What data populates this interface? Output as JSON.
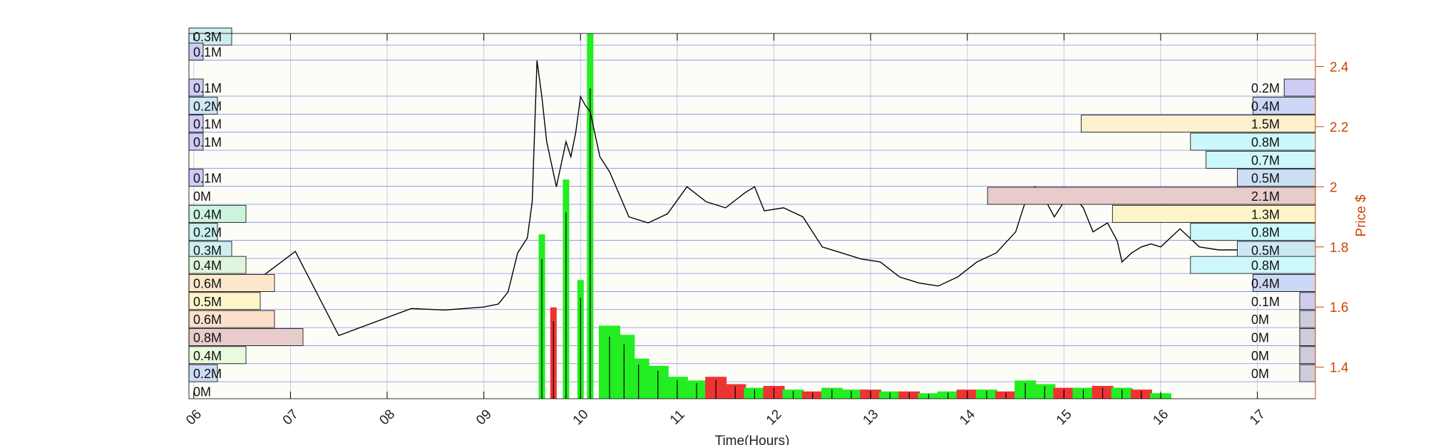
{
  "chart_data": {
    "type": "line",
    "title": "",
    "xlabel": "Time(Hours)",
    "ylabel": "Price $",
    "xlim": [
      5.95,
      17.6
    ],
    "ylim": [
      1.295,
      2.51
    ],
    "x_ticks": [
      "06",
      "07",
      "08",
      "09",
      "10",
      "11",
      "12",
      "13",
      "14",
      "15",
      "16",
      "17"
    ],
    "y_ticks": [
      1.4,
      1.6,
      1.8,
      2.0,
      2.2,
      2.4
    ],
    "y_tick_labels": [
      "1.4",
      "1.6",
      "1.8",
      "2",
      "2.2",
      "2.4"
    ],
    "grid": true,
    "price_series": {
      "name": "Price",
      "x": [
        6.7,
        7.05,
        7.5,
        8.25,
        8.6,
        9.0,
        9.15,
        9.25,
        9.35,
        9.45,
        9.5,
        9.55,
        9.6,
        9.65,
        9.75,
        9.85,
        9.9,
        9.95,
        10.0,
        10.05,
        10.1,
        10.2,
        10.3,
        10.5,
        10.7,
        10.9,
        11.1,
        11.3,
        11.5,
        11.7,
        11.8,
        11.9,
        12.1,
        12.3,
        12.5,
        12.7,
        12.9,
        13.1,
        13.3,
        13.5,
        13.7,
        13.9,
        14.1,
        14.3,
        14.5,
        14.6,
        14.7,
        14.8,
        14.9,
        15.0,
        15.1,
        15.2,
        15.3,
        15.45,
        15.55,
        15.6,
        15.7,
        15.8,
        15.9,
        16.0,
        16.2,
        16.4,
        16.6,
        16.8
      ],
      "y": [
        1.7,
        1.785,
        1.505,
        1.595,
        1.59,
        1.6,
        1.61,
        1.65,
        1.78,
        1.83,
        1.95,
        2.42,
        2.3,
        2.15,
        2.0,
        2.15,
        2.1,
        2.18,
        2.3,
        2.27,
        2.25,
        2.1,
        2.05,
        1.9,
        1.88,
        1.91,
        2.0,
        1.95,
        1.93,
        1.98,
        2.0,
        1.92,
        1.93,
        1.9,
        1.8,
        1.78,
        1.76,
        1.75,
        1.7,
        1.68,
        1.67,
        1.7,
        1.75,
        1.78,
        1.85,
        1.95,
        2.0,
        1.96,
        1.9,
        1.95,
        1.97,
        1.93,
        1.85,
        1.88,
        1.82,
        1.75,
        1.78,
        1.8,
        1.81,
        1.8,
        1.86,
        1.8,
        1.79,
        1.79
      ]
    },
    "volume_bars": {
      "x": [
        9.6,
        9.72,
        9.85,
        10.0,
        10.1,
        10.3,
        10.45,
        10.6,
        10.8,
        11.0,
        11.2,
        11.4,
        11.6,
        11.8,
        12.0,
        12.2,
        12.4,
        12.6,
        12.8,
        13.0,
        13.2,
        13.4,
        13.6,
        13.8,
        14.0,
        14.2,
        14.4,
        14.6,
        14.8,
        15.0,
        15.2,
        15.4,
        15.6,
        15.8,
        16.0
      ],
      "values": [
        0.9,
        0.5,
        1.2,
        0.65,
        2.0,
        0.4,
        0.35,
        0.22,
        0.18,
        0.12,
        0.1,
        0.12,
        0.08,
        0.06,
        0.07,
        0.05,
        0.04,
        0.06,
        0.05,
        0.05,
        0.04,
        0.04,
        0.03,
        0.04,
        0.05,
        0.05,
        0.04,
        0.1,
        0.08,
        0.06,
        0.06,
        0.07,
        0.06,
        0.05,
        0.03
      ],
      "colors": [
        "green",
        "red",
        "green",
        "green",
        "green",
        "green",
        "green",
        "green",
        "green",
        "green",
        "green",
        "red",
        "red",
        "green",
        "red",
        "green",
        "red",
        "green",
        "green",
        "red",
        "green",
        "red",
        "green",
        "green",
        "red",
        "green",
        "red",
        "green",
        "green",
        "red",
        "green",
        "red",
        "green",
        "red",
        "green"
      ]
    },
    "session_volume_profile": {
      "position": "left",
      "prices": [
        2.5,
        2.45,
        2.33,
        2.27,
        2.21,
        2.15,
        2.03,
        1.97,
        1.91,
        1.85,
        1.79,
        1.74,
        1.68,
        1.62,
        1.56,
        1.5,
        1.44,
        1.38,
        1.32
      ],
      "values": [
        0.3,
        0.1,
        0.1,
        0.2,
        0.1,
        0.1,
        0.1,
        0.0,
        0.4,
        0.2,
        0.3,
        0.4,
        0.6,
        0.5,
        0.6,
        0.8,
        0.4,
        0.2,
        0.0
      ],
      "labels": [
        "0.3M",
        "0.1M",
        "0.1M",
        "0.2M",
        "0.1M",
        "0.1M",
        "0.1M",
        "0M",
        "0.4M",
        "0.2M",
        "0.3M",
        "0.4M",
        "0.6M",
        "0.5M",
        "0.6M",
        "0.8M",
        "0.4M",
        "0.2M",
        "0M"
      ],
      "colors": [
        "#cceeee",
        "#ccccf5",
        "#ccccf5",
        "#cce8f5",
        "#ccccf5",
        "#ccccf5",
        "#ccccf5",
        "#ccccf5",
        "#ccf5dd",
        "#cceeee",
        "#ccf0f0",
        "#dff5dd",
        "#fde8cc",
        "#fdf5c8",
        "#fde0cc",
        "#e8cccc",
        "#eafadd",
        "#ccdcf5",
        "#ffffff"
      ]
    },
    "day_volume_profile": {
      "position": "right",
      "prices": [
        2.33,
        2.27,
        2.21,
        2.15,
        2.09,
        2.03,
        1.97,
        1.91,
        1.85,
        1.79,
        1.74,
        1.68,
        1.62,
        1.56,
        1.5,
        1.44,
        1.38
      ],
      "values": [
        0.2,
        0.4,
        1.5,
        0.8,
        0.7,
        0.5,
        2.1,
        1.3,
        0.8,
        0.5,
        0.8,
        0.4,
        0.1,
        0.0,
        0.0,
        0.0,
        0.0
      ],
      "labels": [
        "0.2M",
        "0.4M",
        "1.5M",
        "0.8M",
        "0.7M",
        "0.5M",
        "2.1M",
        "1.3M",
        "0.8M",
        "0.5M",
        "0.8M",
        "0.4M",
        "0.1M",
        "0M",
        "0M",
        "0M",
        "0M"
      ],
      "colors": [
        "#ccccf5",
        "#ccd8f5",
        "#fdf0cc",
        "#ccf8fc",
        "#ccf8fc",
        "#cce0f5",
        "#e8cccc",
        "#fdf5c8",
        "#ccf8fc",
        "#cce8f5",
        "#ccf8fc",
        "#ccd8f5",
        "#ccccee",
        "#ccccdd",
        "#ccccdd",
        "#ccccdd",
        "#ccccdd"
      ]
    },
    "colors": {
      "price_line": "#000000",
      "axis_right": "#cc4400",
      "grid_h": "#5555dd",
      "grid_v": "#c8c8e8",
      "volume_up": "#22ee22",
      "volume_down": "#ee3333",
      "frame": "#000000"
    }
  }
}
